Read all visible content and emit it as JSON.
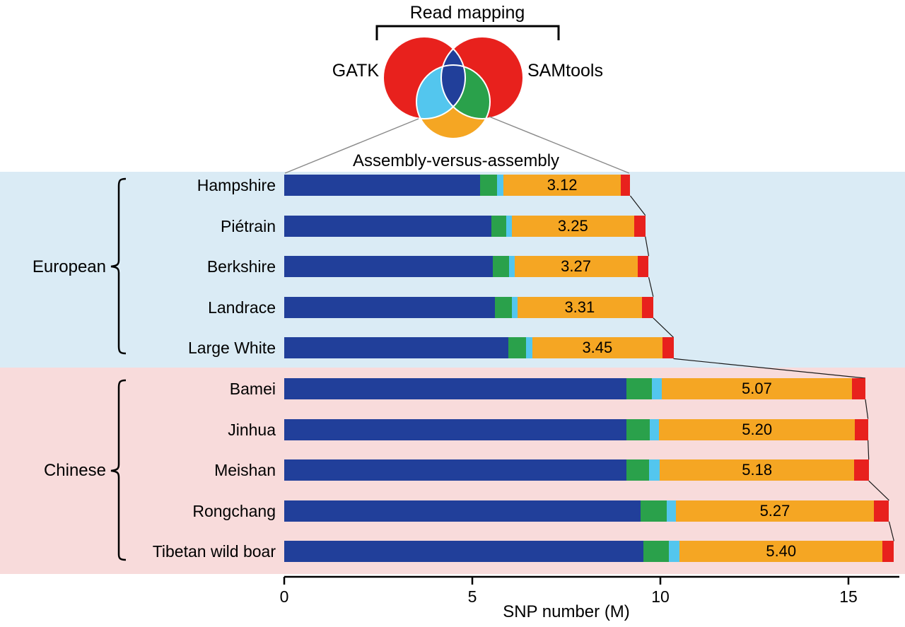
{
  "venn": {
    "bracket_label": "Read mapping",
    "left_label": "GATK",
    "right_label": "SAMtools",
    "bottom_label": "Assembly-versus-assembly",
    "colors": {
      "circle_red": "#e8211d",
      "assembly_circle_orange": "#f5a623",
      "overlap_gatk_samtools_blue": "#213f9a",
      "overlap_gatk_assembly_cyan": "#53c6ee",
      "overlap_samtools_assembly_green": "#2aa14b"
    }
  },
  "groups": [
    {
      "name": "European",
      "band_color": "#daebf5"
    },
    {
      "name": "Chinese",
      "band_color": "#f8dbdb"
    }
  ],
  "axis": {
    "label": "SNP number (M)",
    "ticks": [
      0,
      5,
      10,
      15
    ]
  },
  "chart_data": {
    "type": "bar",
    "orientation": "horizontal",
    "title": "",
    "xlabel": "SNP number (M)",
    "xlim": [
      0,
      16.35
    ],
    "stack_order": [
      "dark_blue",
      "green",
      "light_blue",
      "orange",
      "red"
    ],
    "colors": {
      "dark_blue": "#213f9a",
      "green": "#2aa14b",
      "light_blue": "#53c6ee",
      "orange": "#f5a623",
      "red": "#e8211d"
    },
    "rows": [
      {
        "group": "European",
        "label": "Hampshire",
        "value_label": "3.12",
        "segments": {
          "dark_blue": 5.2,
          "green": 0.45,
          "light_blue": 0.18,
          "orange": 3.12,
          "red": 0.25
        }
      },
      {
        "group": "European",
        "label": "Piétrain",
        "value_label": "3.25",
        "segments": {
          "dark_blue": 5.5,
          "green": 0.4,
          "light_blue": 0.15,
          "orange": 3.25,
          "red": 0.3
        }
      },
      {
        "group": "European",
        "label": "Berkshire",
        "value_label": "3.27",
        "segments": {
          "dark_blue": 5.55,
          "green": 0.42,
          "light_blue": 0.15,
          "orange": 3.27,
          "red": 0.3
        }
      },
      {
        "group": "European",
        "label": "Landrace",
        "value_label": "3.31",
        "segments": {
          "dark_blue": 5.6,
          "green": 0.45,
          "light_blue": 0.15,
          "orange": 3.31,
          "red": 0.3
        }
      },
      {
        "group": "European",
        "label": "Large White",
        "value_label": "3.45",
        "segments": {
          "dark_blue": 5.95,
          "green": 0.48,
          "light_blue": 0.17,
          "orange": 3.45,
          "red": 0.3
        }
      },
      {
        "group": "Chinese",
        "label": "Bamei",
        "value_label": "5.07",
        "segments": {
          "dark_blue": 9.1,
          "green": 0.68,
          "light_blue": 0.25,
          "orange": 5.07,
          "red": 0.35
        }
      },
      {
        "group": "Chinese",
        "label": "Jinhua",
        "value_label": "5.20",
        "segments": {
          "dark_blue": 9.1,
          "green": 0.62,
          "light_blue": 0.25,
          "orange": 5.2,
          "red": 0.35
        }
      },
      {
        "group": "Chinese",
        "label": "Meishan",
        "value_label": "5.18",
        "segments": {
          "dark_blue": 9.1,
          "green": 0.6,
          "light_blue": 0.28,
          "orange": 5.18,
          "red": 0.38
        }
      },
      {
        "group": "Chinese",
        "label": "Rongchang",
        "value_label": "5.27",
        "segments": {
          "dark_blue": 9.48,
          "green": 0.68,
          "light_blue": 0.25,
          "orange": 5.27,
          "red": 0.4
        }
      },
      {
        "group": "Chinese",
        "label": "Tibetan wild boar",
        "value_label": "5.40",
        "segments": {
          "dark_blue": 9.55,
          "green": 0.68,
          "light_blue": 0.28,
          "orange": 5.4,
          "red": 0.3
        }
      }
    ]
  }
}
